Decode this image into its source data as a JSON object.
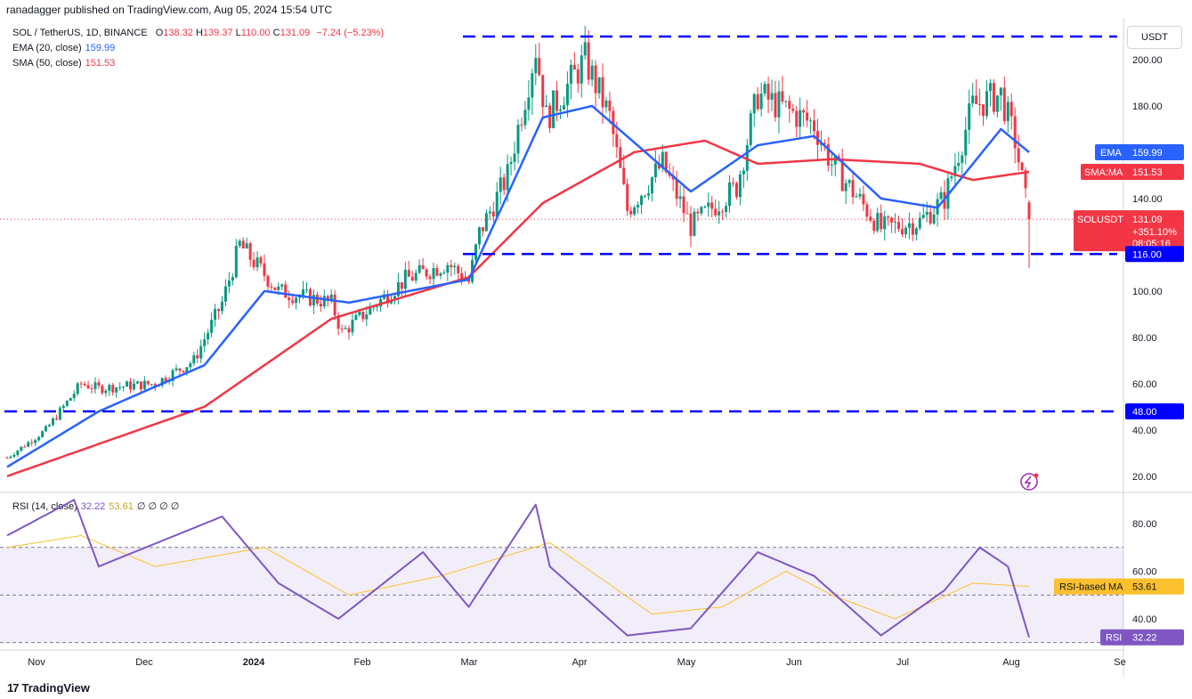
{
  "header": {
    "published": "ranadagger published on TradingView.com, Aug 05, 2024 15:54 UTC"
  },
  "currency": "USDT",
  "legend": {
    "symbol": "SOL / TetherUS, 1D, BINANCE",
    "open_label": "O",
    "open": "138.32",
    "high_label": "H",
    "high": "139.37",
    "low_label": "L",
    "low": "110.00",
    "close_label": "C",
    "close": "131.09",
    "change": "−7.24 (−5.23%)",
    "ema_label": "EMA (20, close)",
    "ema_value": "159.99",
    "sma_label": "SMA (50, close)",
    "sma_value": "151.53",
    "rsi_label": "RSI (14, close)",
    "rsi_value": "32.22",
    "rsi_ma_value": "53.61",
    "rsi_extra": "∅ ∅ ∅ ∅"
  },
  "price_axis": {
    "ticks": [
      "200.00",
      "180.00",
      "140.00",
      "100.00",
      "80.00",
      "60.00",
      "40.00",
      "20.00"
    ]
  },
  "rsi_axis": {
    "ticks": [
      "80.00",
      "60.00",
      "40.00"
    ]
  },
  "time_axis": {
    "ticks": [
      "Nov",
      "Dec",
      "2024",
      "Feb",
      "Mar",
      "Apr",
      "May",
      "Jun",
      "Jul",
      "Aug",
      "Se"
    ]
  },
  "badges": {
    "ema": {
      "label": "EMA",
      "value": "159.99"
    },
    "sma": {
      "label": "SMA:MA",
      "value": "151.53"
    },
    "last": {
      "label": "SOLUSDT",
      "value": "131.09",
      "change": "+351.10%",
      "countdown": "08:05:16"
    },
    "support_116": "116.00",
    "support_48": "48.00",
    "rsi_ma": {
      "label": "RSI-based MA",
      "value": "53.61"
    },
    "rsi": {
      "label": "RSI",
      "value": "32.22"
    }
  },
  "levels": {
    "resistance": 210,
    "support_mid": 116,
    "support_low": 48
  },
  "colors": {
    "up": "#089981",
    "down": "#f23645",
    "ema": "#2962ff",
    "sma": "#f23645",
    "rsi": "#7e57c2",
    "rsi_ma": "#fbc02d",
    "level": "#0000ff"
  },
  "chart_data": {
    "type": "candlestick",
    "symbol": "SOL / TetherUS",
    "interval": "1D",
    "price_range": [
      13,
      215
    ],
    "rsi_range": [
      28,
      92
    ],
    "x_start": "2023-10-20",
    "x_end": "2024-08-05",
    "ohlc_keyframes": [
      {
        "date": "2023-10-20",
        "close": 28
      },
      {
        "date": "2023-10-31",
        "close": 40
      },
      {
        "date": "2023-11-10",
        "close": 60
      },
      {
        "date": "2023-11-15",
        "close": 58
      },
      {
        "date": "2023-12-01",
        "close": 60
      },
      {
        "date": "2023-12-12",
        "close": 70
      },
      {
        "date": "2023-12-20",
        "close": 95
      },
      {
        "date": "2023-12-25",
        "close": 120
      },
      {
        "date": "2024-01-05",
        "close": 100
      },
      {
        "date": "2024-01-20",
        "close": 95
      },
      {
        "date": "2024-01-23",
        "close": 82
      },
      {
        "date": "2024-02-10",
        "close": 105
      },
      {
        "date": "2024-02-22",
        "close": 112
      },
      {
        "date": "2024-02-28",
        "close": 104
      },
      {
        "date": "2024-03-02",
        "close": 125
      },
      {
        "date": "2024-03-10",
        "close": 150
      },
      {
        "date": "2024-03-18",
        "close": 205
      },
      {
        "date": "2024-03-21",
        "close": 175
      },
      {
        "date": "2024-04-01",
        "close": 200
      },
      {
        "date": "2024-04-08",
        "close": 175
      },
      {
        "date": "2024-04-13",
        "close": 135
      },
      {
        "date": "2024-04-23",
        "close": 155
      },
      {
        "date": "2024-05-01",
        "close": 128
      },
      {
        "date": "2024-05-14",
        "close": 145
      },
      {
        "date": "2024-05-20",
        "close": 185
      },
      {
        "date": "2024-06-05",
        "close": 172
      },
      {
        "date": "2024-06-10",
        "close": 155
      },
      {
        "date": "2024-06-24",
        "close": 127
      },
      {
        "date": "2024-07-05",
        "close": 130
      },
      {
        "date": "2024-07-12",
        "close": 140
      },
      {
        "date": "2024-07-20",
        "close": 180
      },
      {
        "date": "2024-07-28",
        "close": 185
      },
      {
        "date": "2024-08-01",
        "close": 165
      },
      {
        "date": "2024-08-05",
        "open": 138.32,
        "high": 139.37,
        "low": 110.0,
        "close": 131.09
      }
    ],
    "ema20_keyframes": [
      {
        "date": "2023-10-20",
        "value": 24
      },
      {
        "date": "2023-11-15",
        "value": 48
      },
      {
        "date": "2023-12-15",
        "value": 68
      },
      {
        "date": "2024-01-01",
        "value": 100
      },
      {
        "date": "2024-01-25",
        "value": 95
      },
      {
        "date": "2024-02-28",
        "value": 105
      },
      {
        "date": "2024-03-20",
        "value": 175
      },
      {
        "date": "2024-04-03",
        "value": 180
      },
      {
        "date": "2024-05-01",
        "value": 143
      },
      {
        "date": "2024-05-20",
        "value": 163
      },
      {
        "date": "2024-06-05",
        "value": 167
      },
      {
        "date": "2024-06-24",
        "value": 140
      },
      {
        "date": "2024-07-10",
        "value": 136
      },
      {
        "date": "2024-07-28",
        "value": 170
      },
      {
        "date": "2024-08-05",
        "value": 159.99
      }
    ],
    "sma50_keyframes": [
      {
        "date": "2023-10-20",
        "value": 20
      },
      {
        "date": "2023-12-15",
        "value": 50
      },
      {
        "date": "2024-01-20",
        "value": 88
      },
      {
        "date": "2024-02-28",
        "value": 106
      },
      {
        "date": "2024-03-20",
        "value": 138
      },
      {
        "date": "2024-04-15",
        "value": 160
      },
      {
        "date": "2024-05-05",
        "value": 165
      },
      {
        "date": "2024-05-20",
        "value": 155
      },
      {
        "date": "2024-06-10",
        "value": 157
      },
      {
        "date": "2024-07-05",
        "value": 155
      },
      {
        "date": "2024-07-20",
        "value": 148
      },
      {
        "date": "2024-08-05",
        "value": 151.53
      }
    ],
    "rsi_keyframes": [
      {
        "date": "2023-10-20",
        "value": 75
      },
      {
        "date": "2023-11-08",
        "value": 90
      },
      {
        "date": "2023-11-15",
        "value": 62
      },
      {
        "date": "2023-12-20",
        "value": 83
      },
      {
        "date": "2024-01-05",
        "value": 55
      },
      {
        "date": "2024-01-22",
        "value": 40
      },
      {
        "date": "2024-02-15",
        "value": 68
      },
      {
        "date": "2024-02-28",
        "value": 45
      },
      {
        "date": "2024-03-18",
        "value": 88
      },
      {
        "date": "2024-03-22",
        "value": 62
      },
      {
        "date": "2024-04-13",
        "value": 33
      },
      {
        "date": "2024-05-01",
        "value": 36
      },
      {
        "date": "2024-05-20",
        "value": 68
      },
      {
        "date": "2024-06-05",
        "value": 58
      },
      {
        "date": "2024-06-24",
        "value": 33
      },
      {
        "date": "2024-07-12",
        "value": 52
      },
      {
        "date": "2024-07-22",
        "value": 70
      },
      {
        "date": "2024-07-30",
        "value": 62
      },
      {
        "date": "2024-08-05",
        "value": 32.22
      }
    ],
    "rsi_ma_keyframes": [
      {
        "date": "2023-10-20",
        "value": 70
      },
      {
        "date": "2023-11-10",
        "value": 75
      },
      {
        "date": "2023-12-01",
        "value": 62
      },
      {
        "date": "2024-01-01",
        "value": 70
      },
      {
        "date": "2024-01-25",
        "value": 50
      },
      {
        "date": "2024-02-20",
        "value": 58
      },
      {
        "date": "2024-03-22",
        "value": 72
      },
      {
        "date": "2024-04-20",
        "value": 42
      },
      {
        "date": "2024-05-10",
        "value": 45
      },
      {
        "date": "2024-05-28",
        "value": 60
      },
      {
        "date": "2024-06-10",
        "value": 50
      },
      {
        "date": "2024-06-28",
        "value": 40
      },
      {
        "date": "2024-07-20",
        "value": 55
      },
      {
        "date": "2024-08-05",
        "value": 53.61
      }
    ],
    "rsi_band": [
      30,
      70
    ],
    "horizontal_levels": [
      210,
      116,
      48
    ]
  }
}
